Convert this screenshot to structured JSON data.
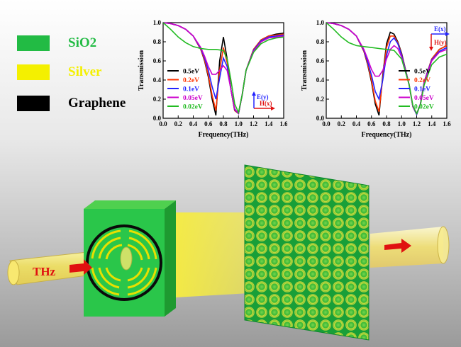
{
  "legend": {
    "items": [
      {
        "label": "SiO2",
        "color": "#22bb44"
      },
      {
        "label": "Silver",
        "color": "#f4f000"
      },
      {
        "label": "Graphene",
        "color": "#000000"
      }
    ],
    "label_colors": [
      "#22bb44",
      "#f4f000",
      "#000000"
    ]
  },
  "source_label": "THz",
  "chart_data": [
    {
      "type": "line",
      "xlabel": "Frequency(THz)",
      "ylabel": "Transmission",
      "xlim": [
        0.0,
        1.6
      ],
      "ylim": [
        0.0,
        1.0
      ],
      "xticks": [
        "0.0",
        "0.2",
        "0.4",
        "0.6",
        "0.8",
        "1.0",
        "1.2",
        "1.4",
        "1.6"
      ],
      "yticks": [
        "0.0",
        "0.2",
        "0.4",
        "0.6",
        "0.8",
        "1.0"
      ],
      "legend_position": "left",
      "polarization": {
        "vertical": "E(y)",
        "horizontal": "H(x)"
      },
      "series": [
        {
          "name": "0.5eV",
          "color": "#000000",
          "x": [
            0,
            0.1,
            0.2,
            0.3,
            0.4,
            0.5,
            0.55,
            0.6,
            0.65,
            0.7,
            0.75,
            0.8,
            0.85,
            0.9,
            0.95,
            1.0,
            1.05,
            1.1,
            1.2,
            1.3,
            1.4,
            1.5,
            1.6
          ],
          "y": [
            1.0,
            0.99,
            0.97,
            0.93,
            0.86,
            0.72,
            0.6,
            0.43,
            0.2,
            0.03,
            0.6,
            0.85,
            0.62,
            0.3,
            0.08,
            0.05,
            0.25,
            0.5,
            0.72,
            0.82,
            0.86,
            0.88,
            0.89
          ]
        },
        {
          "name": "0.2eV",
          "color": "#ff3300",
          "x": [
            0,
            0.1,
            0.2,
            0.3,
            0.4,
            0.5,
            0.55,
            0.6,
            0.65,
            0.7,
            0.75,
            0.8,
            0.85,
            0.9,
            0.95,
            1.0,
            1.05,
            1.1,
            1.2,
            1.3,
            1.4,
            1.5,
            1.6
          ],
          "y": [
            1.0,
            0.99,
            0.97,
            0.93,
            0.86,
            0.72,
            0.61,
            0.45,
            0.24,
            0.08,
            0.5,
            0.74,
            0.58,
            0.3,
            0.08,
            0.05,
            0.25,
            0.5,
            0.72,
            0.82,
            0.86,
            0.87,
            0.88
          ]
        },
        {
          "name": "0.1eV",
          "color": "#2222ff",
          "x": [
            0,
            0.1,
            0.2,
            0.3,
            0.4,
            0.5,
            0.55,
            0.6,
            0.65,
            0.7,
            0.75,
            0.8,
            0.85,
            0.9,
            0.95,
            1.0,
            1.05,
            1.1,
            1.2,
            1.3,
            1.4,
            1.5,
            1.6
          ],
          "y": [
            1.0,
            0.99,
            0.97,
            0.93,
            0.86,
            0.73,
            0.63,
            0.5,
            0.33,
            0.2,
            0.42,
            0.63,
            0.54,
            0.3,
            0.09,
            0.05,
            0.25,
            0.5,
            0.71,
            0.81,
            0.85,
            0.86,
            0.87
          ]
        },
        {
          "name": "0.05eV",
          "color": "#cc00cc",
          "x": [
            0,
            0.1,
            0.2,
            0.3,
            0.4,
            0.5,
            0.55,
            0.6,
            0.65,
            0.7,
            0.75,
            0.8,
            0.85,
            0.9,
            0.95,
            1.0,
            1.05,
            1.1,
            1.2,
            1.3,
            1.4,
            1.5,
            1.6
          ],
          "y": [
            1.0,
            0.99,
            0.97,
            0.93,
            0.86,
            0.74,
            0.65,
            0.54,
            0.46,
            0.46,
            0.5,
            0.55,
            0.5,
            0.3,
            0.1,
            0.05,
            0.25,
            0.5,
            0.7,
            0.8,
            0.84,
            0.85,
            0.86
          ]
        },
        {
          "name": "0.02eV",
          "color": "#22bb22",
          "x": [
            0,
            0.1,
            0.2,
            0.3,
            0.4,
            0.5,
            0.6,
            0.7,
            0.8,
            0.85,
            0.9,
            0.95,
            1.0,
            1.05,
            1.1,
            1.2,
            1.3,
            1.4,
            1.5,
            1.6
          ],
          "y": [
            1.0,
            0.93,
            0.85,
            0.79,
            0.75,
            0.73,
            0.72,
            0.72,
            0.71,
            0.62,
            0.4,
            0.15,
            0.06,
            0.25,
            0.5,
            0.69,
            0.78,
            0.82,
            0.84,
            0.85
          ]
        }
      ]
    },
    {
      "type": "line",
      "xlabel": "Frequency(THz)",
      "ylabel": "Transmission",
      "xlim": [
        0.0,
        1.6
      ],
      "ylim": [
        0.0,
        1.0
      ],
      "xticks": [
        "0.0",
        "0.2",
        "0.4",
        "0.6",
        "0.8",
        "1.0",
        "1.2",
        "1.4",
        "1.6"
      ],
      "yticks": [
        "0.0",
        "0.2",
        "0.4",
        "0.6",
        "0.8",
        "1.0"
      ],
      "legend_position": "right",
      "polarization": {
        "vertical": "H(y)",
        "horizontal": "E(x)"
      },
      "series": [
        {
          "name": "0.5eV",
          "color": "#000000",
          "x": [
            0,
            0.1,
            0.2,
            0.3,
            0.4,
            0.5,
            0.55,
            0.6,
            0.65,
            0.7,
            0.75,
            0.8,
            0.85,
            0.9,
            0.95,
            1.0,
            1.1,
            1.15,
            1.2,
            1.25,
            1.3,
            1.4,
            1.5,
            1.6
          ],
          "y": [
            1.0,
            0.99,
            0.97,
            0.93,
            0.86,
            0.7,
            0.56,
            0.38,
            0.15,
            0.03,
            0.45,
            0.78,
            0.9,
            0.88,
            0.8,
            0.68,
            0.35,
            0.12,
            0.04,
            0.15,
            0.38,
            0.62,
            0.72,
            0.76
          ]
        },
        {
          "name": "0.2eV",
          "color": "#ff3300",
          "x": [
            0,
            0.1,
            0.2,
            0.3,
            0.4,
            0.5,
            0.55,
            0.6,
            0.65,
            0.7,
            0.75,
            0.8,
            0.85,
            0.9,
            0.95,
            1.0,
            1.1,
            1.15,
            1.2,
            1.25,
            1.3,
            1.4,
            1.5,
            1.6
          ],
          "y": [
            1.0,
            0.99,
            0.97,
            0.93,
            0.86,
            0.7,
            0.57,
            0.4,
            0.18,
            0.07,
            0.42,
            0.74,
            0.86,
            0.86,
            0.79,
            0.67,
            0.35,
            0.12,
            0.04,
            0.15,
            0.38,
            0.62,
            0.72,
            0.76
          ]
        },
        {
          "name": "0.1eV",
          "color": "#2222ff",
          "x": [
            0,
            0.1,
            0.2,
            0.3,
            0.4,
            0.5,
            0.55,
            0.6,
            0.65,
            0.7,
            0.75,
            0.8,
            0.85,
            0.9,
            0.95,
            1.0,
            1.1,
            1.15,
            1.2,
            1.25,
            1.3,
            1.4,
            1.5,
            1.6
          ],
          "y": [
            1.0,
            0.99,
            0.97,
            0.93,
            0.86,
            0.71,
            0.59,
            0.45,
            0.28,
            0.2,
            0.4,
            0.66,
            0.8,
            0.84,
            0.78,
            0.66,
            0.35,
            0.12,
            0.04,
            0.15,
            0.38,
            0.61,
            0.7,
            0.74
          ]
        },
        {
          "name": "0.05eV",
          "color": "#cc00cc",
          "x": [
            0,
            0.1,
            0.2,
            0.3,
            0.4,
            0.5,
            0.55,
            0.6,
            0.65,
            0.7,
            0.75,
            0.8,
            0.85,
            0.9,
            0.95,
            1.0,
            1.1,
            1.15,
            1.2,
            1.25,
            1.3,
            1.4,
            1.5,
            1.6
          ],
          "y": [
            1.0,
            0.99,
            0.97,
            0.93,
            0.86,
            0.72,
            0.62,
            0.51,
            0.44,
            0.44,
            0.5,
            0.62,
            0.72,
            0.76,
            0.73,
            0.64,
            0.35,
            0.12,
            0.05,
            0.15,
            0.37,
            0.6,
            0.69,
            0.72
          ]
        },
        {
          "name": "0.02eV",
          "color": "#22bb22",
          "x": [
            0,
            0.1,
            0.2,
            0.3,
            0.4,
            0.5,
            0.6,
            0.7,
            0.8,
            0.9,
            1.0,
            1.1,
            1.15,
            1.2,
            1.25,
            1.3,
            1.4,
            1.5,
            1.6
          ],
          "y": [
            1.0,
            0.93,
            0.85,
            0.79,
            0.76,
            0.75,
            0.74,
            0.73,
            0.72,
            0.71,
            0.62,
            0.35,
            0.13,
            0.05,
            0.14,
            0.35,
            0.56,
            0.64,
            0.67
          ]
        }
      ]
    }
  ]
}
